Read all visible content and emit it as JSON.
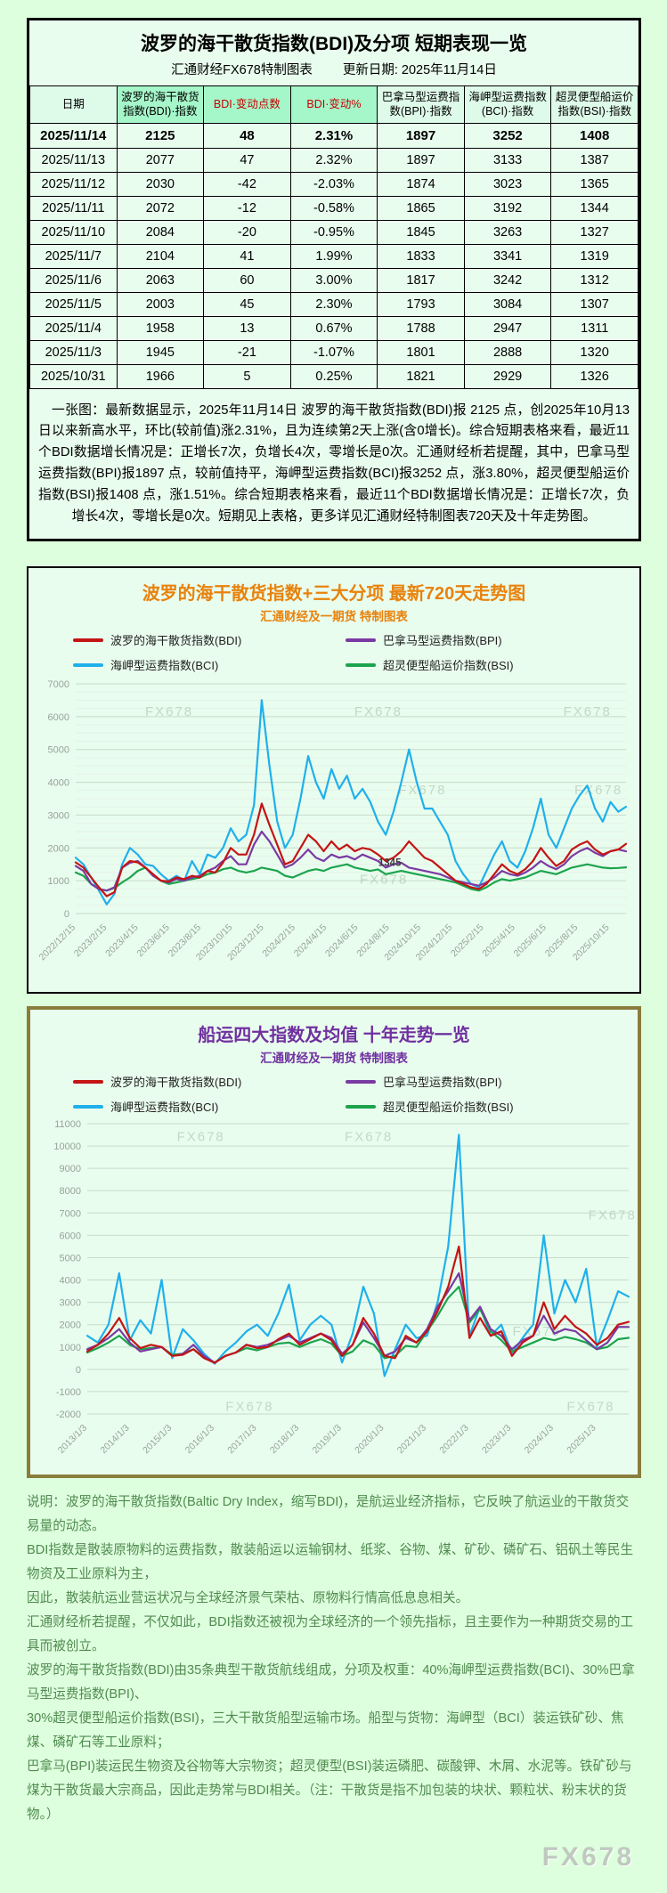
{
  "colors": {
    "page_bg": "#deffde",
    "panel_bg": "#e9fdee",
    "bdi_red": "#c41414",
    "bpi_purple": "#7a3aa3",
    "bci_blue": "#1fb0ec",
    "bsi_green": "#1ca44d",
    "chart720_title": "#e8820c",
    "chart10y_title": "#7030a0",
    "table_highlight": "#a5f6c9",
    "olive_border": "#8a7d3c"
  },
  "table_section": {
    "title": "波罗的海干散货指数(BDI)及分项  短期表现一览",
    "source": "汇通财经FX678特制图表",
    "updated": "更新日期: 2025年11月14日",
    "summary": "　一张图：最新数据显示，2025年11月14日 波罗的海干散货指数(BDI)报 2125 点，创2025年10月13日以来新高水平，环比(较前值)涨2.31%，且为连续第2天上涨(含0增长)。综合短期表格来看，最近11个BDI数据增长情况是：正增长7次，负增长4次，零增长是0次。汇通财经析若提醒，其中，巴拿马型运费指数(BPI)报1897 点，较前值持平，海岬型运费指数(BCI)报3252 点，涨3.80%，超灵便型船运价指数(BSI)报1408 点，涨1.51%。综合短期表格来看，最近11个BDI数据增长情况是：正增长7次，负增长4次，零增长是0次。短期见上表格，更多详见汇通财经特制图表720天及十年走势图。"
  },
  "footer": {
    "lines": [
      "说明：波罗的海干散货指数(Baltic Dry Index，缩写BDI)，是航运业经济指标，它反映了航运业的干散货交易量的动态。",
      "BDI指数是散装原物料的运费指数，散装船运以运输钢材、纸浆、谷物、煤、矿砂、磷矿石、铝矾土等民生物资及工业原料为主，",
      "因此，散装航运业营运状况与全球经济景气荣枯、原物料行情高低息息相关。",
      "汇通财经析若提醒，不仅如此，BDI指数还被视为全球经济的一个领先指标，且主要作为一种期货交易的工具而被创立。",
      "波罗的海干散货指数(BDI)由35条典型干散货航线组成，分项及权重：40%海岬型运费指数(BCI)、30%巴拿马型运费指数(BPI)、",
      "30%超灵便型船运价指数(BSI)，三大干散货船型运输市场。船型与货物：海岬型（BCI）装运铁矿砂、焦煤、磷矿石等工业原料；",
      "巴拿马(BPI)装运民生物资及谷物等大宗物资；超灵便型(BSI)装运磷肥、碳酸钾、木屑、水泥等。铁矿砂与煤为干散货最大宗商品，因此走势常与BDI相关。（注：干散货是指不加包装的块状、颗粒状、粉末状的货物。）"
    ],
    "watermark": "FX678"
  },
  "chart_data": [
    {
      "type": "table",
      "columns": [
        "日期",
        "波罗的海干散货指数(BDI)·指数",
        "BDI·变动点数",
        "BDI·变动%",
        "巴拿马型运费指数(BPI)·指数",
        "海岬型运费指数(BCI)·指数",
        "超灵便型船运价指数(BSI)·指数"
      ],
      "highlight_cols": [
        1,
        2,
        3
      ],
      "red_cols": [
        2,
        3
      ],
      "rows": [
        [
          "2025/11/14",
          "2125",
          "48",
          "2.31%",
          "1897",
          "3252",
          "1408"
        ],
        [
          "2025/11/13",
          "2077",
          "47",
          "2.32%",
          "1897",
          "3133",
          "1387"
        ],
        [
          "2025/11/12",
          "2030",
          "-42",
          "-2.03%",
          "1874",
          "3023",
          "1365"
        ],
        [
          "2025/11/11",
          "2072",
          "-12",
          "-0.58%",
          "1865",
          "3192",
          "1344"
        ],
        [
          "2025/11/10",
          "2084",
          "-20",
          "-0.95%",
          "1845",
          "3263",
          "1327"
        ],
        [
          "2025/11/7",
          "2104",
          "41",
          "1.99%",
          "1833",
          "3341",
          "1319"
        ],
        [
          "2025/11/6",
          "2063",
          "60",
          "3.00%",
          "1817",
          "3242",
          "1312"
        ],
        [
          "2025/11/5",
          "2003",
          "45",
          "2.30%",
          "1793",
          "3084",
          "1307"
        ],
        [
          "2025/11/4",
          "1958",
          "13",
          "0.67%",
          "1788",
          "2947",
          "1311"
        ],
        [
          "2025/11/3",
          "1945",
          "-21",
          "-1.07%",
          "1801",
          "2888",
          "1320"
        ],
        [
          "2025/10/31",
          "1966",
          "5",
          "0.25%",
          "1821",
          "2929",
          "1326"
        ]
      ]
    },
    {
      "type": "line",
      "title": "波罗的海干散货指数+三大分项  最新720天走势图",
      "subtitle": "汇通财经及一期货  特制图表",
      "ylim": [
        0,
        7000
      ],
      "ytick": 1000,
      "minor": 250,
      "grid": true,
      "legend_position": "top",
      "label_span": 0.97,
      "x_labels": [
        "2022/12/15",
        "2023/2/15",
        "2023/4/15",
        "2023/6/15",
        "2023/8/15",
        "2023/10/15",
        "2023/12/15",
        "2024/2/15",
        "2024/4/15",
        "2024/6/15",
        "2024/8/15",
        "2024/10/15",
        "2024/12/15",
        "2025/2/15",
        "2025/4/15",
        "2025/6/15",
        "2025/8/15",
        "2025/10/15"
      ],
      "annotation": {
        "text": "1345",
        "x_frac": 0.55,
        "value": 1450
      },
      "watermarks": [
        [
          0.17,
          0.14
        ],
        [
          0.55,
          0.14
        ],
        [
          0.93,
          0.14
        ],
        [
          0.63,
          0.48
        ],
        [
          0.95,
          0.48
        ],
        [
          0.56,
          0.87
        ]
      ],
      "draw_order": [
        2,
        3,
        1,
        0
      ],
      "series": [
        {
          "id": "BDI",
          "name": "波罗的海干散货指数(BDI)",
          "color": "#c41414",
          "values": [
            1560,
            1400,
            1100,
            800,
            530,
            650,
            1400,
            1600,
            1560,
            1400,
            1200,
            1000,
            980,
            1100,
            1050,
            1150,
            1100,
            1300,
            1250,
            1550,
            2000,
            1800,
            1800,
            2400,
            3350,
            2700,
            2100,
            1500,
            1600,
            2000,
            2400,
            2200,
            1900,
            2200,
            1950,
            2100,
            1900,
            2000,
            1950,
            1800,
            1600,
            1700,
            1900,
            2200,
            1950,
            1700,
            1600,
            1400,
            1200,
            1000,
            900,
            800,
            750,
            900,
            1200,
            1500,
            1300,
            1200,
            1350,
            1600,
            2000,
            1700,
            1450,
            1600,
            1950,
            2100,
            2200,
            1950,
            1800,
            1900,
            1950,
            2125
          ]
        },
        {
          "id": "BPI",
          "name": "巴拿马型运费指数(BPI)",
          "color": "#7a3aa3",
          "values": [
            1450,
            1300,
            900,
            750,
            700,
            800,
            1400,
            1550,
            1600,
            1400,
            1150,
            1000,
            950,
            1050,
            1000,
            1100,
            1150,
            1300,
            1400,
            1600,
            1750,
            1500,
            1500,
            2100,
            2500,
            2200,
            1800,
            1400,
            1500,
            1700,
            1950,
            1700,
            1600,
            1800,
            1700,
            1750,
            1650,
            1800,
            1700,
            1600,
            1400,
            1500,
            1550,
            1400,
            1350,
            1300,
            1250,
            1200,
            1100,
            1000,
            950,
            900,
            850,
            950,
            1100,
            1300,
            1200,
            1150,
            1250,
            1400,
            1600,
            1450,
            1350,
            1500,
            1750,
            1900,
            2000,
            1850,
            1750,
            1900,
            1950,
            1897
          ]
        },
        {
          "id": "BCI",
          "name": "海岬型运费指数(BCI)",
          "color": "#1fb0ec",
          "values": [
            1700,
            1500,
            1100,
            700,
            280,
            600,
            1500,
            2000,
            1800,
            1500,
            1450,
            1200,
            1000,
            1150,
            1000,
            1600,
            1200,
            1800,
            1700,
            2000,
            2600,
            2200,
            2400,
            3300,
            6500,
            4500,
            2800,
            2000,
            2400,
            3500,
            4800,
            4000,
            3500,
            4400,
            3800,
            4200,
            3500,
            3800,
            3400,
            2800,
            2400,
            3100,
            4000,
            5000,
            4000,
            3200,
            3200,
            2800,
            2400,
            1600,
            1200,
            900,
            800,
            1300,
            1800,
            2200,
            1600,
            1400,
            1900,
            2600,
            3500,
            2400,
            2000,
            2600,
            3200,
            3600,
            3900,
            3200,
            2800,
            3400,
            3100,
            3252
          ]
        },
        {
          "id": "BSI",
          "name": "超灵便型船运价指数(BSI)",
          "color": "#1ca44d",
          "values": [
            1250,
            1150,
            900,
            750,
            700,
            780,
            950,
            1100,
            1300,
            1400,
            1150,
            1000,
            900,
            950,
            1000,
            1050,
            1100,
            1200,
            1250,
            1350,
            1400,
            1300,
            1250,
            1300,
            1400,
            1350,
            1300,
            1150,
            1100,
            1200,
            1300,
            1350,
            1300,
            1400,
            1450,
            1500,
            1400,
            1350,
            1300,
            1345,
            1200,
            1250,
            1300,
            1250,
            1200,
            1150,
            1100,
            1050,
            1000,
            950,
            850,
            750,
            700,
            800,
            950,
            1050,
            1000,
            1050,
            1100,
            1200,
            1300,
            1250,
            1200,
            1300,
            1400,
            1450,
            1500,
            1450,
            1400,
            1380,
            1390,
            1408
          ]
        }
      ]
    },
    {
      "type": "line",
      "title": "船运四大指数及均值 十年走势一览",
      "subtitle": "汇通财经及一期货 特制图表",
      "ylim": [
        -2000,
        11000
      ],
      "ytick": 1000,
      "grid": true,
      "legend_position": "top",
      "label_span": 0.94,
      "x_labels": [
        "2013/1/3",
        "2014/1/3",
        "2015/1/3",
        "2016/1/3",
        "2017/1/3",
        "2018/1/3",
        "2019/1/3",
        "2020/1/3",
        "2021/1/3",
        "2022/1/3",
        "2023/1/3",
        "2024/1/3",
        "2025/1/3"
      ],
      "watermarks": [
        [
          0.21,
          0.06
        ],
        [
          0.52,
          0.06
        ],
        [
          0.97,
          0.33
        ],
        [
          0.83,
          0.73
        ],
        [
          0.3,
          0.99
        ],
        [
          0.93,
          0.99
        ]
      ],
      "draw_order": [
        2,
        3,
        1,
        0
      ],
      "series": [
        {
          "id": "BDI",
          "name": "波罗的海干散货指数(BDI)",
          "color": "#c41414",
          "values": [
            800,
            1100,
            1600,
            2300,
            1400,
            950,
            1100,
            1000,
            600,
            650,
            900,
            500,
            290,
            600,
            750,
            1100,
            950,
            1000,
            1350,
            1600,
            1100,
            1350,
            1600,
            1300,
            600,
            1100,
            2300,
            1600,
            600,
            500,
            1500,
            1200,
            1700,
            2600,
            3700,
            5500,
            1400,
            2300,
            1500,
            1700,
            600,
            1200,
            1500,
            3000,
            1800,
            2400,
            1900,
            1600,
            1100,
            1400,
            2000,
            2125
          ]
        },
        {
          "id": "BPI",
          "name": "巴拿马型运费指数(BPI)",
          "color": "#7a3aa3",
          "values": [
            900,
            1100,
            1400,
            1800,
            1200,
            800,
            900,
            1000,
            600,
            700,
            1100,
            600,
            300,
            600,
            750,
            1100,
            1000,
            1100,
            1300,
            1500,
            1200,
            1400,
            1600,
            1400,
            700,
            1100,
            2100,
            1400,
            600,
            800,
            1400,
            1200,
            1800,
            2800,
            3500,
            4300,
            2200,
            2800,
            1800,
            1500,
            900,
            1300,
            1500,
            2400,
            1600,
            1800,
            1700,
            1300,
            900,
            1200,
            1900,
            1897
          ]
        },
        {
          "id": "BCI",
          "name": "海岬型运费指数(BCI)",
          "color": "#1fb0ec",
          "values": [
            1500,
            1200,
            2000,
            4300,
            1300,
            2200,
            1600,
            4000,
            500,
            1800,
            1300,
            700,
            250,
            800,
            1200,
            1700,
            2000,
            1500,
            2500,
            3800,
            1300,
            2000,
            2400,
            2000,
            300,
            1600,
            3700,
            2500,
            -300,
            900,
            2000,
            1400,
            1500,
            3000,
            5500,
            10500,
            1500,
            2800,
            1500,
            2000,
            700,
            1400,
            2000,
            6000,
            2500,
            4000,
            3000,
            4500,
            1000,
            2200,
            3500,
            3252
          ]
        },
        {
          "id": "BSI",
          "name": "超灵便型船运价指数(BSI)",
          "color": "#1ca44d",
          "values": [
            750,
            950,
            1200,
            1500,
            1100,
            900,
            950,
            1000,
            650,
            700,
            900,
            550,
            300,
            600,
            750,
            950,
            850,
            1000,
            1150,
            1200,
            1000,
            1200,
            1350,
            1150,
            600,
            800,
            1300,
            1100,
            500,
            600,
            1050,
            1000,
            1700,
            2400,
            3200,
            3700,
            2100,
            2700,
            1700,
            1300,
            800,
            1000,
            1200,
            1400,
            1300,
            1450,
            1350,
            1200,
            900,
            1000,
            1350,
            1408
          ]
        }
      ]
    }
  ]
}
